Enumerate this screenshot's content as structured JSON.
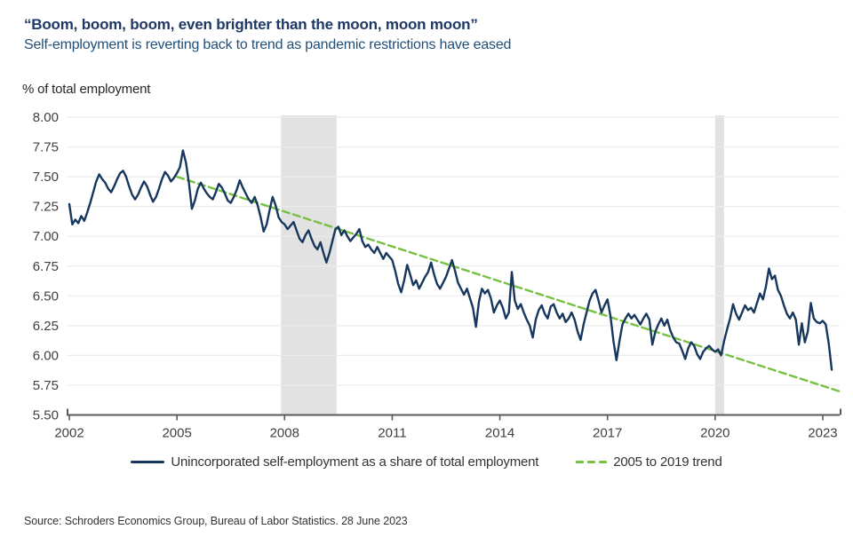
{
  "header": {
    "title": "“Boom, boom, boom, even brighter than the moon, moon moon”",
    "subtitle": "Self-employment is reverting back to trend as pandemic restrictions have eased"
  },
  "chart": {
    "axis_unit_label": "% of total employment"
  },
  "legend": {
    "series1": "Unincorporated self-employment as a share of total employment",
    "series2": "2005 to 2019 trend"
  },
  "source": "Source: Schroders Economics Group, Bureau of Labor Statistics. 28 June 2023",
  "colors": {
    "title": "#1f3864",
    "subtitle": "#1f4e79",
    "line": "#17375e",
    "trend": "#76c043",
    "recession_band": "#e2e2e2",
    "gridline": "#ececec",
    "axis": "#595959",
    "tick_text": "#404040",
    "text": "#333333"
  },
  "chart_data": {
    "type": "line",
    "title": "Unincorporated self-employment as a share of total employment vs 2005 to 2019 trend",
    "ylabel": "% of total employment",
    "ylim": [
      5.5,
      8.0
    ],
    "ytick_step": 0.25,
    "xlim": [
      2002,
      2023.45
    ],
    "xticks": [
      2002,
      2005,
      2008,
      2011,
      2014,
      2017,
      2020,
      2023
    ],
    "grid": "horizontal-faint",
    "legend_position": "bottom-center",
    "recession_bands": [
      [
        2007.9,
        2009.45
      ],
      [
        2020.0,
        2020.25
      ]
    ],
    "series": [
      {
        "name": "Unincorporated self-employment as a share of total employment",
        "color": "#17375e",
        "style": "solid",
        "x_start": 2002.0,
        "x_step_months": 1,
        "values": [
          7.27,
          7.1,
          7.14,
          7.11,
          7.17,
          7.13,
          7.2,
          7.28,
          7.37,
          7.46,
          7.52,
          7.48,
          7.45,
          7.4,
          7.37,
          7.42,
          7.48,
          7.53,
          7.55,
          7.5,
          7.42,
          7.35,
          7.31,
          7.35,
          7.41,
          7.46,
          7.42,
          7.35,
          7.29,
          7.33,
          7.4,
          7.48,
          7.54,
          7.51,
          7.46,
          7.49,
          7.53,
          7.58,
          7.72,
          7.62,
          7.45,
          7.23,
          7.3,
          7.4,
          7.45,
          7.4,
          7.36,
          7.33,
          7.31,
          7.37,
          7.44,
          7.41,
          7.36,
          7.3,
          7.28,
          7.33,
          7.39,
          7.47,
          7.41,
          7.36,
          7.31,
          7.28,
          7.33,
          7.26,
          7.16,
          7.04,
          7.1,
          7.22,
          7.33,
          7.26,
          7.16,
          7.12,
          7.1,
          7.06,
          7.09,
          7.12,
          7.05,
          6.98,
          6.95,
          7.01,
          7.05,
          6.98,
          6.92,
          6.89,
          6.95,
          6.86,
          6.78,
          6.86,
          6.96,
          7.06,
          7.08,
          7.01,
          7.05,
          7.0,
          6.96,
          6.99,
          7.02,
          7.06,
          6.96,
          6.91,
          6.93,
          6.89,
          6.86,
          6.91,
          6.86,
          6.81,
          6.86,
          6.83,
          6.8,
          6.71,
          6.6,
          6.53,
          6.63,
          6.76,
          6.68,
          6.59,
          6.63,
          6.56,
          6.61,
          6.66,
          6.7,
          6.78,
          6.68,
          6.6,
          6.56,
          6.61,
          6.66,
          6.73,
          6.8,
          6.71,
          6.61,
          6.56,
          6.51,
          6.56,
          6.48,
          6.4,
          6.24,
          6.45,
          6.56,
          6.52,
          6.55,
          6.48,
          6.36,
          6.42,
          6.46,
          6.4,
          6.31,
          6.36,
          6.7,
          6.46,
          6.39,
          6.43,
          6.36,
          6.3,
          6.25,
          6.15,
          6.3,
          6.38,
          6.42,
          6.35,
          6.31,
          6.41,
          6.43,
          6.36,
          6.31,
          6.35,
          6.28,
          6.31,
          6.36,
          6.3,
          6.2,
          6.13,
          6.26,
          6.36,
          6.46,
          6.52,
          6.55,
          6.46,
          6.36,
          6.42,
          6.47,
          6.33,
          6.12,
          5.96,
          6.12,
          6.26,
          6.31,
          6.35,
          6.31,
          6.34,
          6.3,
          6.26,
          6.31,
          6.35,
          6.3,
          6.09,
          6.2,
          6.26,
          6.31,
          6.25,
          6.3,
          6.21,
          6.15,
          6.11,
          6.1,
          6.04,
          5.97,
          6.06,
          6.11,
          6.08,
          6.01,
          5.97,
          6.03,
          6.06,
          6.08,
          6.05,
          6.03,
          6.05,
          6.0,
          6.12,
          6.22,
          6.31,
          6.43,
          6.35,
          6.3,
          6.36,
          6.42,
          6.38,
          6.4,
          6.36,
          6.44,
          6.52,
          6.47,
          6.58,
          6.73,
          6.64,
          6.67,
          6.55,
          6.5,
          6.42,
          6.35,
          6.31,
          6.36,
          6.3,
          6.09,
          6.27,
          6.11,
          6.2,
          6.44,
          6.31,
          6.28,
          6.27,
          6.29,
          6.26,
          6.1,
          5.88
        ]
      },
      {
        "name": "2005 to 2019 trend",
        "color": "#76c043",
        "style": "dashed",
        "dash": [
          8,
          4.5
        ],
        "x": [
          2005.0,
          2023.45
        ],
        "values": [
          7.5,
          5.7
        ]
      }
    ]
  }
}
